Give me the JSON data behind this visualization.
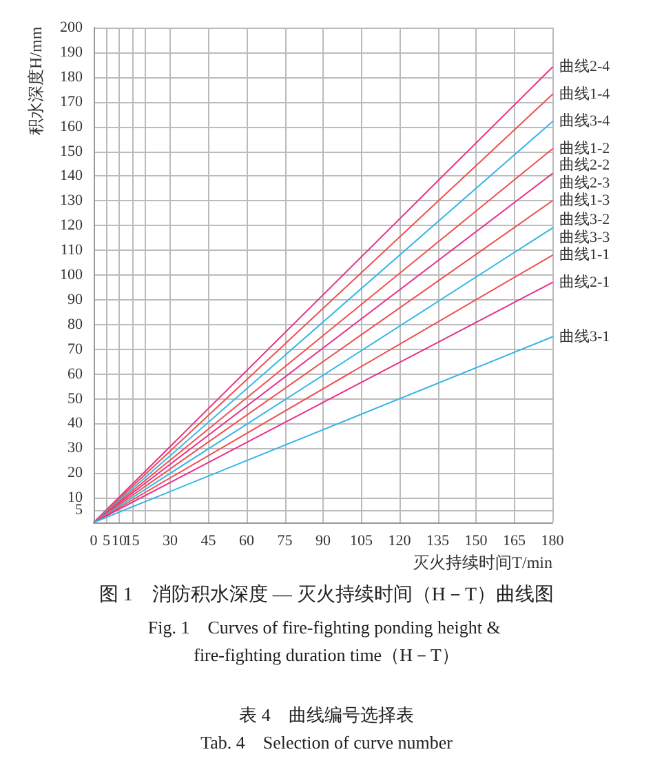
{
  "chart_data": {
    "type": "line",
    "title": "图 1　消防积水深度 — 灭火持续时间（H－T）曲线图",
    "subtitle": "Fig. 1　Curves of fire-fighting ponding height & fire-fighting duration time（H－T）",
    "xlabel": "灭火持续时间T/min",
    "ylabel": "积水深度H/mm",
    "x": [
      0,
      180
    ],
    "series": [
      {
        "name": "曲线2-4",
        "color": "#e8308c",
        "values": [
          0,
          184
        ]
      },
      {
        "name": "曲线1-4",
        "color": "#ef4f50",
        "values": [
          0,
          173
        ]
      },
      {
        "name": "曲线3-4",
        "color": "#36b6e6",
        "values": [
          0,
          162
        ]
      },
      {
        "name": "曲线1-2",
        "color": "#ef4f50",
        "values": [
          0,
          151
        ]
      },
      {
        "name": "曲线2-2",
        "color": "#e8308c",
        "values": [
          0,
          141
        ]
      },
      {
        "name": "曲线1-3",
        "color": "#ef4f50",
        "values": [
          0,
          130
        ]
      },
      {
        "name": "曲线3-2",
        "color": "#36b6e6",
        "values": [
          0,
          119
        ]
      },
      {
        "name": "曲线1-1",
        "color": "#ef4f50",
        "values": [
          0,
          108
        ]
      },
      {
        "name": "曲线2-1",
        "color": "#e8308c",
        "values": [
          0,
          97
        ]
      },
      {
        "name": "曲线3-1",
        "color": "#36b6e6",
        "values": [
          0,
          75
        ]
      }
    ],
    "annotations": [
      {
        "text": "曲线2-3",
        "x": 180,
        "y": 141
      },
      {
        "text": "曲线3-3",
        "x": 180,
        "y": 119
      },
      "表 4　曲线编号选择表",
      "Tab. 4　Selection of curve number"
    ],
    "xlim": [
      0,
      180
    ],
    "xticks": [
      0,
      5,
      10,
      15,
      {
        "value": 20,
        "label": null
      },
      30,
      45,
      60,
      75,
      90,
      105,
      120,
      135,
      150,
      165,
      180
    ],
    "ylim": [
      0,
      200
    ],
    "yticks": [
      {
        "value": 0,
        "label": null
      },
      5,
      10,
      20,
      30,
      40,
      50,
      60,
      70,
      80,
      90,
      100,
      110,
      120,
      130,
      140,
      150,
      160,
      170,
      180,
      190,
      200
    ],
    "grid": true,
    "marker": "none"
  }
}
